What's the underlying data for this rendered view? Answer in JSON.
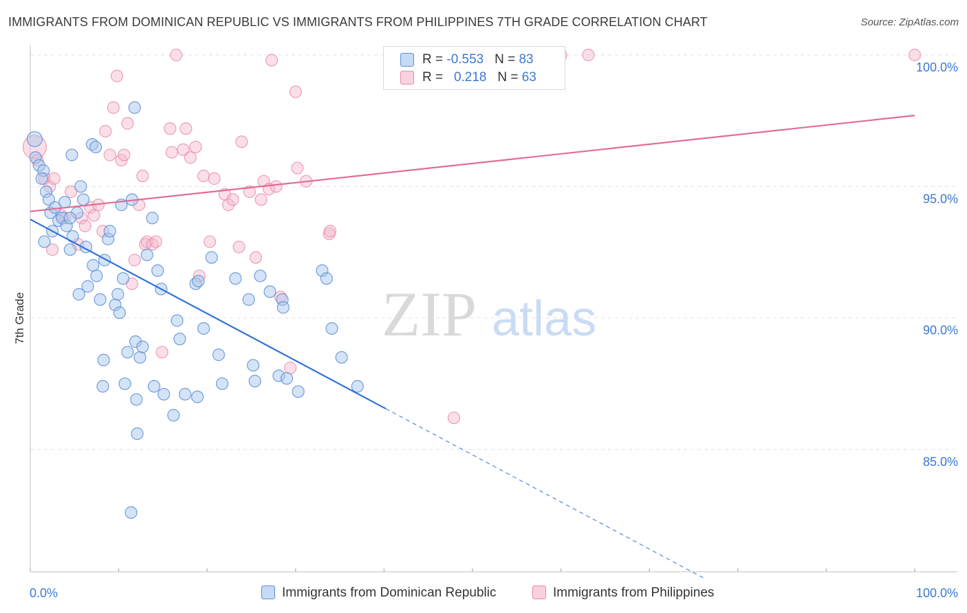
{
  "title": "IMMIGRANTS FROM DOMINICAN REPUBLIC VS IMMIGRANTS FROM PHILIPPINES 7TH GRADE CORRELATION CHART",
  "source": "Source: ZipAtlas.com",
  "watermark": {
    "zip": "ZIP",
    "atlas": "atlas"
  },
  "legend": {
    "rows": [
      {
        "r_label": "R = ",
        "r_value": "-0.553",
        "n_label": "N = ",
        "n_value": "83"
      },
      {
        "r_label": "R = ",
        "r_value": "0.218",
        "n_label": "N = ",
        "n_value": "63"
      }
    ]
  },
  "colors": {
    "blue_fill": "#a9c7ee",
    "blue_stroke": "#5b8fd6",
    "blue_line": "#2f72d6",
    "pink_fill": "#f5b8cc",
    "pink_stroke": "#e88aa8",
    "pink_line": "#e26b95",
    "tick_label": "#3a78d4",
    "grid": "#e3e3e3"
  },
  "chart_data": {
    "type": "scatter",
    "title": "IMMIGRANTS FROM DOMINICAN REPUBLIC VS IMMIGRANTS FROM PHILIPPINES 7TH GRADE CORRELATION CHART",
    "xlabel": "",
    "ylabel": "7th Grade",
    "xlim": [
      0,
      100
    ],
    "ylim": [
      80.5,
      100.8
    ],
    "x_tick_labels": [
      "0.0%",
      "100.0%"
    ],
    "y_ticks": [
      85,
      90,
      95,
      100
    ],
    "y_tick_labels": [
      "85.0%",
      "90.0%",
      "95.0%",
      "100.0%"
    ],
    "grid": true,
    "legend_position": "top-center",
    "series": [
      {
        "name": "Immigrants from Dominican Republic",
        "color": "#5b8fd6",
        "R": -0.553,
        "N": 83,
        "trend": {
          "x0": 0,
          "y0": 93.75,
          "x1": 40.2,
          "y1": 86.55,
          "dashed_to_x": 76.2,
          "dashed_to_y": 80.1
        },
        "points": [
          [
            0.5,
            96.8
          ],
          [
            0.6,
            96.1
          ],
          [
            1.0,
            95.8
          ],
          [
            1.5,
            95.6
          ],
          [
            1.3,
            95.3
          ],
          [
            1.8,
            94.8
          ],
          [
            2.1,
            94.5
          ],
          [
            2.3,
            94.0
          ],
          [
            2.8,
            94.2
          ],
          [
            3.2,
            93.7
          ],
          [
            3.6,
            93.8
          ],
          [
            2.5,
            93.3
          ],
          [
            4.1,
            93.5
          ],
          [
            3.9,
            94.4
          ],
          [
            4.5,
            92.6
          ],
          [
            4.8,
            93.1
          ],
          [
            5.3,
            94.0
          ],
          [
            5.7,
            95.0
          ],
          [
            6.0,
            94.5
          ],
          [
            6.3,
            92.7
          ],
          [
            7.0,
            96.6
          ],
          [
            7.4,
            96.5
          ],
          [
            7.1,
            92.0
          ],
          [
            7.5,
            91.6
          ],
          [
            6.5,
            91.2
          ],
          [
            5.5,
            90.9
          ],
          [
            7.9,
            90.7
          ],
          [
            8.4,
            92.2
          ],
          [
            8.8,
            93.0
          ],
          [
            9.0,
            93.3
          ],
          [
            9.6,
            90.5
          ],
          [
            9.9,
            90.9
          ],
          [
            10.1,
            90.2
          ],
          [
            10.5,
            91.5
          ],
          [
            10.3,
            94.3
          ],
          [
            11.5,
            94.5
          ],
          [
            11.8,
            98.0
          ],
          [
            11.0,
            88.7
          ],
          [
            11.9,
            89.1
          ],
          [
            12.4,
            88.5
          ],
          [
            12.7,
            88.9
          ],
          [
            13.2,
            92.4
          ],
          [
            13.8,
            93.8
          ],
          [
            14.4,
            91.8
          ],
          [
            14.8,
            91.1
          ],
          [
            14.0,
            87.4
          ],
          [
            15.1,
            87.1
          ],
          [
            16.2,
            86.3
          ],
          [
            16.6,
            89.9
          ],
          [
            16.9,
            89.2
          ],
          [
            17.5,
            87.1
          ],
          [
            18.7,
            91.3
          ],
          [
            19.0,
            91.4
          ],
          [
            18.9,
            87.0
          ],
          [
            19.6,
            89.6
          ],
          [
            20.5,
            92.3
          ],
          [
            21.3,
            88.6
          ],
          [
            21.7,
            87.5
          ],
          [
            23.2,
            91.5
          ],
          [
            24.7,
            90.7
          ],
          [
            25.2,
            88.2
          ],
          [
            25.4,
            87.6
          ],
          [
            26.0,
            91.6
          ],
          [
            27.1,
            91.0
          ],
          [
            28.1,
            87.8
          ],
          [
            28.5,
            90.7
          ],
          [
            28.6,
            90.4
          ],
          [
            29.0,
            87.7
          ],
          [
            30.3,
            87.2
          ],
          [
            33.0,
            91.8
          ],
          [
            33.5,
            91.5
          ],
          [
            34.1,
            89.6
          ],
          [
            35.2,
            88.5
          ],
          [
            37.0,
            87.4
          ],
          [
            8.3,
            88.4
          ],
          [
            8.2,
            87.4
          ],
          [
            10.7,
            87.5
          ],
          [
            12.0,
            86.9
          ],
          [
            12.1,
            85.6
          ],
          [
            11.4,
            82.6
          ],
          [
            4.7,
            96.2
          ],
          [
            4.5,
            93.8
          ],
          [
            1.6,
            92.9
          ]
        ]
      },
      {
        "name": "Immigrants from Philippines",
        "color": "#e88aa8",
        "R": 0.218,
        "N": 63,
        "trend": {
          "x0": 0,
          "y0": 94.05,
          "x1": 100,
          "y1": 97.7
        },
        "points": [
          [
            0.5,
            96.5
          ],
          [
            0.8,
            96.0
          ],
          [
            1.6,
            95.3
          ],
          [
            2.2,
            95.0
          ],
          [
            2.5,
            92.6
          ],
          [
            2.7,
            95.3
          ],
          [
            3.5,
            93.9
          ],
          [
            3.9,
            93.8
          ],
          [
            4.6,
            94.8
          ],
          [
            5.4,
            92.8
          ],
          [
            5.8,
            93.8
          ],
          [
            6.2,
            93.5
          ],
          [
            6.8,
            94.2
          ],
          [
            7.2,
            93.9
          ],
          [
            7.7,
            94.3
          ],
          [
            8.2,
            93.3
          ],
          [
            8.5,
            97.1
          ],
          [
            9.0,
            96.2
          ],
          [
            9.4,
            98.0
          ],
          [
            9.8,
            99.2
          ],
          [
            10.3,
            96.0
          ],
          [
            10.6,
            96.2
          ],
          [
            11.0,
            97.4
          ],
          [
            11.5,
            91.3
          ],
          [
            11.8,
            92.2
          ],
          [
            12.3,
            94.3
          ],
          [
            12.7,
            95.4
          ],
          [
            13.0,
            92.8
          ],
          [
            13.2,
            92.9
          ],
          [
            13.8,
            92.8
          ],
          [
            14.2,
            92.9
          ],
          [
            14.9,
            88.7
          ],
          [
            15.8,
            97.2
          ],
          [
            16.0,
            96.3
          ],
          [
            16.5,
            100.0
          ],
          [
            17.3,
            96.4
          ],
          [
            17.6,
            97.2
          ],
          [
            18.1,
            96.1
          ],
          [
            18.7,
            96.5
          ],
          [
            19.1,
            91.6
          ],
          [
            19.6,
            95.4
          ],
          [
            20.3,
            92.9
          ],
          [
            20.8,
            95.3
          ],
          [
            22.0,
            94.7
          ],
          [
            22.4,
            94.3
          ],
          [
            22.9,
            94.5
          ],
          [
            23.6,
            92.7
          ],
          [
            23.9,
            96.7
          ],
          [
            24.8,
            94.8
          ],
          [
            25.5,
            92.3
          ],
          [
            26.1,
            94.5
          ],
          [
            26.4,
            95.2
          ],
          [
            27.0,
            94.9
          ],
          [
            27.3,
            99.8
          ],
          [
            27.8,
            95.0
          ],
          [
            28.3,
            90.8
          ],
          [
            29.4,
            88.1
          ],
          [
            30.0,
            98.6
          ],
          [
            30.2,
            95.7
          ],
          [
            31.2,
            95.2
          ],
          [
            33.8,
            93.2
          ],
          [
            33.9,
            93.3
          ],
          [
            47.9,
            86.2
          ]
        ],
        "top_points": [
          [
            60.0,
            100.0
          ],
          [
            63.1,
            100.0
          ],
          [
            100.0,
            100.0
          ]
        ]
      }
    ]
  },
  "bottom_legend": {
    "blue": "Immigrants from Dominican Republic",
    "pink": "Immigrants from Philippines"
  }
}
